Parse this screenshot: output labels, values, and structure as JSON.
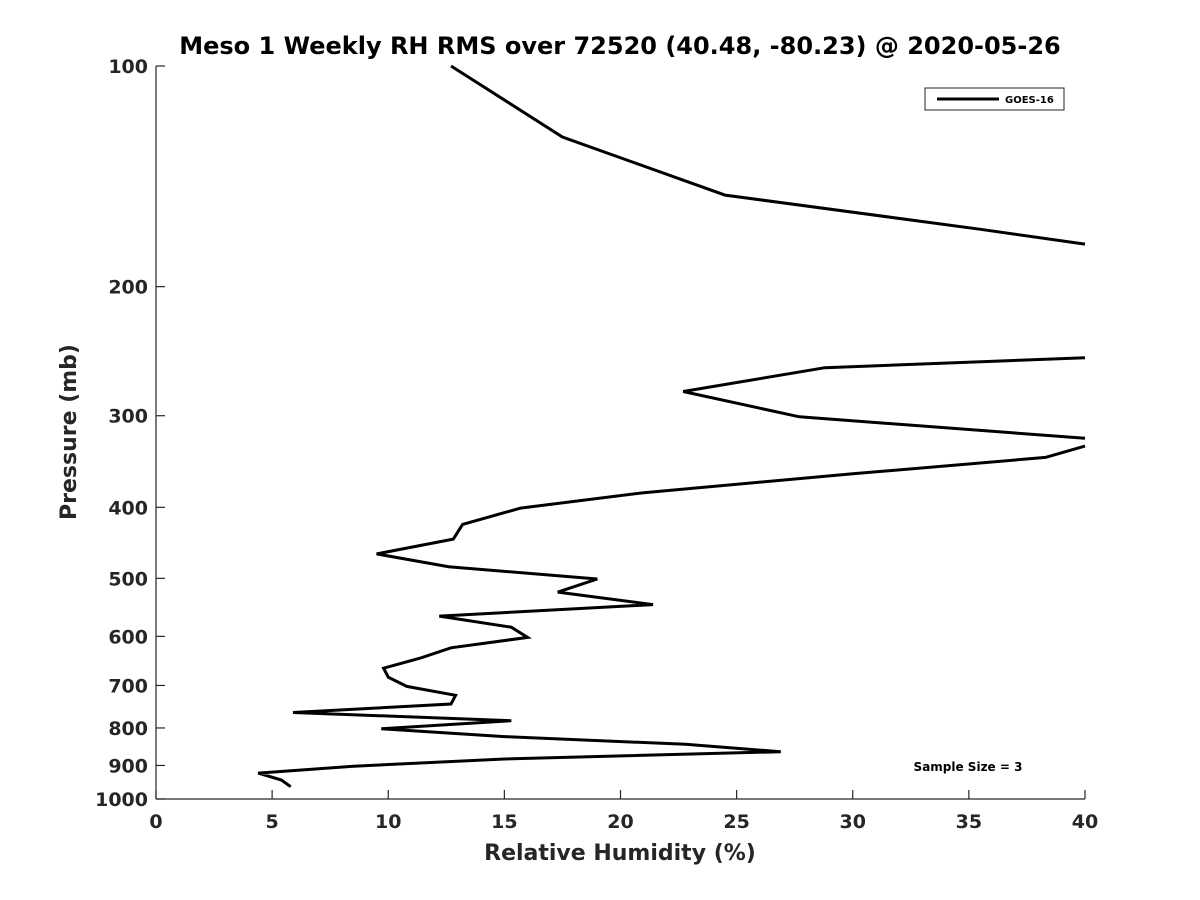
{
  "chart_data": {
    "type": "line",
    "title": "Meso 1 Weekly RH RMS over 72520 (40.48, -80.23) @ 2020-05-26",
    "xlabel": "Relative Humidity (%)",
    "ylabel": "Pressure (mb)",
    "xlim": [
      0,
      40
    ],
    "ylim": [
      1000,
      100
    ],
    "yscale": "log",
    "y_reversed": true,
    "grid": false,
    "x_ticks": [
      0,
      5,
      10,
      15,
      20,
      25,
      30,
      35,
      40
    ],
    "x_tick_labels": [
      "0",
      "5",
      "10",
      "15",
      "20",
      "25",
      "30",
      "35",
      "40"
    ],
    "y_ticks": [
      100,
      200,
      300,
      400,
      500,
      600,
      700,
      800,
      900,
      1000
    ],
    "y_tick_labels": [
      "100",
      "200",
      "300",
      "400",
      "500",
      "600",
      "700",
      "800",
      "900",
      "1000"
    ],
    "legend": {
      "placement": "top-right",
      "entries": [
        "GOES-16"
      ]
    },
    "annotation": "Sample Size = 3",
    "series": [
      {
        "name": "GOES-16",
        "color": "#000000",
        "segments": [
          [
            {
              "x": 12.7,
              "y": 100
            },
            {
              "x": 17.5,
              "y": 125
            },
            {
              "x": 24.5,
              "y": 150
            },
            {
              "x": 35.5,
              "y": 167
            },
            {
              "x": 40.0,
              "y": 175
            }
          ],
          [
            {
              "x": 40.0,
              "y": 250
            },
            {
              "x": 28.8,
              "y": 258
            },
            {
              "x": 22.7,
              "y": 278
            },
            {
              "x": 27.7,
              "y": 301
            },
            {
              "x": 40.0,
              "y": 322
            }
          ],
          [
            {
              "x": 40.0,
              "y": 330
            },
            {
              "x": 38.3,
              "y": 342
            },
            {
              "x": 30.0,
              "y": 360
            },
            {
              "x": 21.0,
              "y": 382
            },
            {
              "x": 15.7,
              "y": 401
            },
            {
              "x": 13.2,
              "y": 422
            },
            {
              "x": 12.8,
              "y": 442
            },
            {
              "x": 9.5,
              "y": 463
            },
            {
              "x": 12.6,
              "y": 482
            },
            {
              "x": 19.0,
              "y": 501
            },
            {
              "x": 17.3,
              "y": 522
            },
            {
              "x": 21.4,
              "y": 543
            },
            {
              "x": 12.2,
              "y": 563
            },
            {
              "x": 15.3,
              "y": 583
            },
            {
              "x": 16.0,
              "y": 602
            },
            {
              "x": 12.7,
              "y": 622
            },
            {
              "x": 11.4,
              "y": 642
            },
            {
              "x": 9.8,
              "y": 663
            },
            {
              "x": 10.0,
              "y": 682
            },
            {
              "x": 10.8,
              "y": 702
            },
            {
              "x": 12.9,
              "y": 722
            },
            {
              "x": 12.7,
              "y": 742
            },
            {
              "x": 5.9,
              "y": 762
            },
            {
              "x": 15.3,
              "y": 782
            },
            {
              "x": 9.7,
              "y": 802
            },
            {
              "x": 15.0,
              "y": 822
            },
            {
              "x": 22.8,
              "y": 842
            },
            {
              "x": 26.9,
              "y": 862
            },
            {
              "x": 15.0,
              "y": 882
            },
            {
              "x": 8.5,
              "y": 902
            },
            {
              "x": 4.4,
              "y": 922
            },
            {
              "x": 5.4,
              "y": 942
            },
            {
              "x": 5.8,
              "y": 962
            }
          ]
        ]
      }
    ]
  }
}
